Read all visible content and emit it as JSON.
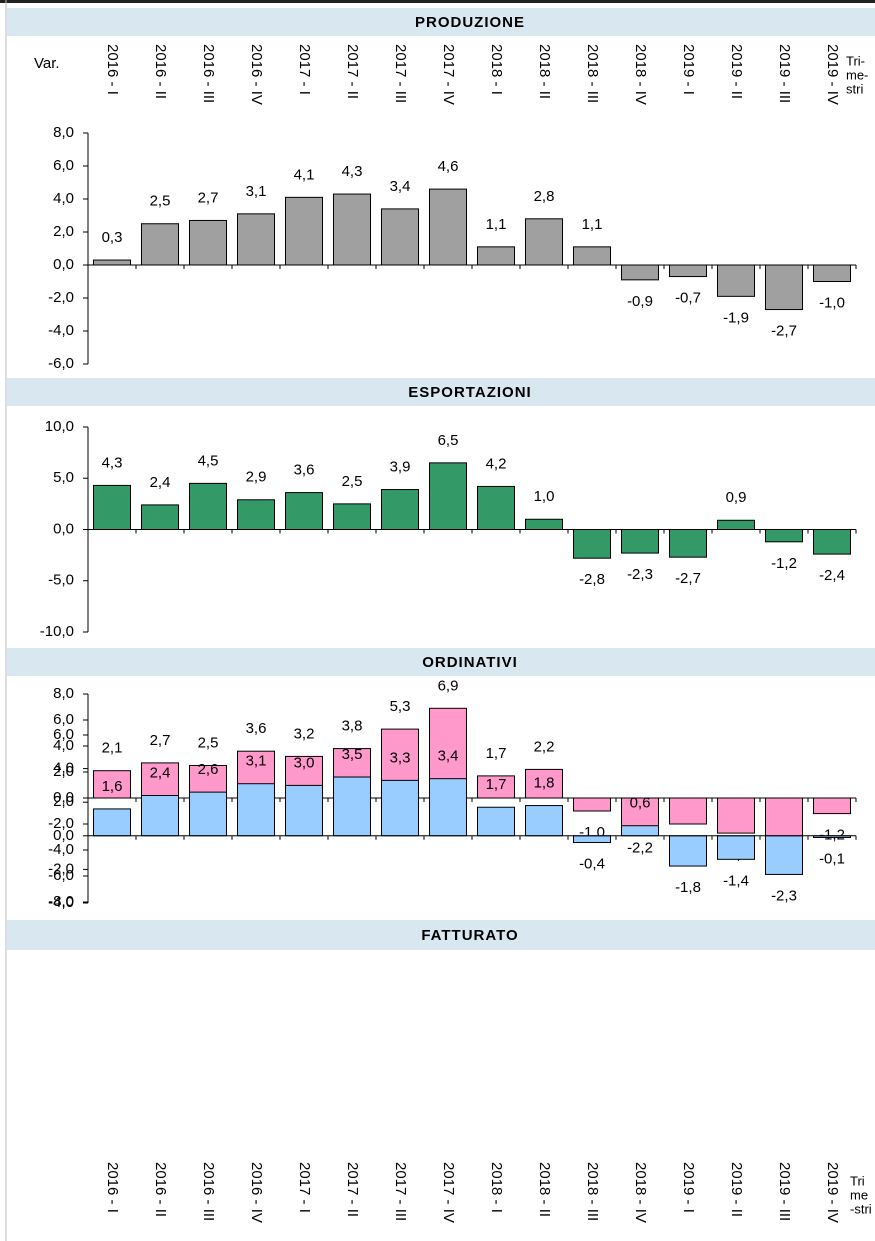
{
  "chart_data": [
    {
      "type": "bar",
      "title": "PRODUZIONE",
      "y_label": "Var.",
      "x_label_lines": [
        "Tri-",
        "me-",
        "stri"
      ],
      "categories": [
        "2016 - I",
        "2016 - II",
        "2016 - III",
        "2016 - IV",
        "2017 - I",
        "2017 - II",
        "2017 - III",
        "2017 - IV",
        "2018 - I",
        "2018 - II",
        "2018 - III",
        "2018 - IV",
        "2019 - I",
        "2019 - II",
        "2019 - III",
        "2019 - IV"
      ],
      "values": [
        0.3,
        2.5,
        2.7,
        3.1,
        4.1,
        4.3,
        3.4,
        4.6,
        1.1,
        2.8,
        1.1,
        -0.9,
        -0.7,
        -1.9,
        -2.7,
        -1.0
      ],
      "value_labels": [
        "0,3",
        "2,5",
        "2,7",
        "3,1",
        "4,1",
        "4,3",
        "3,4",
        "4,6",
        "1,1",
        "2,8",
        "1,1",
        "-0,9",
        "-0,7",
        "-1,9",
        "-2,7",
        "-1,0"
      ],
      "color": "#a0a0a0",
      "ylim": [
        -6,
        8
      ],
      "yticks": [
        {
          "value": -6,
          "label": "-6,0"
        },
        {
          "value": -4,
          "label": "-4,0"
        },
        {
          "value": -2,
          "label": "-2,0"
        },
        {
          "value": 0,
          "label": "0,0"
        },
        {
          "value": 2,
          "label": "2,0"
        },
        {
          "value": 4,
          "label": "4,0"
        },
        {
          "value": 6,
          "label": "6,0"
        },
        {
          "value": 8,
          "label": "8,0"
        }
      ]
    },
    {
      "type": "bar",
      "title": "ESPORTAZIONI",
      "values": [
        4.3,
        2.4,
        4.5,
        2.9,
        3.6,
        2.5,
        3.9,
        6.5,
        4.2,
        1.0,
        -2.8,
        -2.3,
        -2.7,
        0.9,
        -1.2,
        -2.4
      ],
      "value_labels": [
        "4,3",
        "2,4",
        "4,5",
        "2,9",
        "3,6",
        "2,5",
        "3,9",
        "6,5",
        "4,2",
        "1,0",
        "-2,8",
        "-2,3",
        "-2,7",
        "0,9",
        "-1,2",
        "-2,4"
      ],
      "color": "#339966",
      "ylim": [
        -10,
        10
      ],
      "yticks": [
        {
          "value": -10,
          "label": "-10,0"
        },
        {
          "value": -5,
          "label": "-5,0"
        },
        {
          "value": 0,
          "label": "0,0"
        },
        {
          "value": 5,
          "label": "5,0"
        },
        {
          "value": 10,
          "label": "10,0"
        }
      ]
    },
    {
      "type": "bar",
      "title": "ORDINATIVI",
      "values": [
        2.1,
        2.7,
        2.5,
        3.6,
        3.2,
        3.8,
        5.3,
        6.9,
        1.7,
        2.2,
        -1.0,
        -2.2,
        -2.0,
        -2.7,
        -3.3,
        -1.2
      ],
      "value_labels": [
        "2,1",
        "2,7",
        "2,5",
        "3,6",
        "3,2",
        "3,8",
        "5,3",
        "6,9",
        "1,7",
        "2,2",
        "-1,0",
        "-2,2",
        "-2,0",
        "-2,7",
        "-3,3",
        "-1,2"
      ],
      "color": "#ff99cc",
      "ylim": [
        -8,
        8
      ],
      "yticks": [
        {
          "value": -8,
          "label": "-8,0"
        },
        {
          "value": -6,
          "label": "-6,0"
        },
        {
          "value": -4,
          "label": "-4,0"
        },
        {
          "value": -2,
          "label": "-2,0"
        },
        {
          "value": 0,
          "label": "0,0"
        },
        {
          "value": 2,
          "label": "2,0"
        },
        {
          "value": 4,
          "label": "4,0"
        },
        {
          "value": 6,
          "label": "6,0"
        },
        {
          "value": 8,
          "label": "8,0"
        }
      ]
    },
    {
      "type": "bar",
      "title": "FATTURATO",
      "x_label_lines": [
        "Tri",
        "me",
        "-stri"
      ],
      "categories": [
        "2016 - I",
        "2016 - II",
        "2016 - III",
        "2016 - IV",
        "2017 - I",
        "2017 - II",
        "2017 - III",
        "2017 - IV",
        "2018 - I",
        "2018 - II",
        "2018 - III",
        "2018 - IV",
        "2019 - I",
        "2019 - II",
        "2019 - III",
        "2019 - IV"
      ],
      "values": [
        1.6,
        2.4,
        2.6,
        3.1,
        3.0,
        3.5,
        3.3,
        3.4,
        1.7,
        1.8,
        -0.4,
        0.6,
        -1.8,
        -1.4,
        -2.3,
        -0.1
      ],
      "value_labels": [
        "1,6",
        "2,4",
        "2,6",
        "3,1",
        "3,0",
        "3,5",
        "3,3",
        "3,4",
        "1,7",
        "1,8",
        "-0,4",
        "0,6",
        "-1,8",
        "-1,4",
        "-2,3",
        "-0,1"
      ],
      "color": "#99ccff",
      "ylim": [
        -4,
        6
      ],
      "yticks": [
        {
          "value": -4,
          "label": "-4,0"
        },
        {
          "value": -2,
          "label": "-2,0"
        },
        {
          "value": 0,
          "label": "0,0"
        },
        {
          "value": 2,
          "label": "2,0"
        },
        {
          "value": 4,
          "label": "4,0"
        },
        {
          "value": 6,
          "label": "6,0"
        }
      ]
    }
  ]
}
